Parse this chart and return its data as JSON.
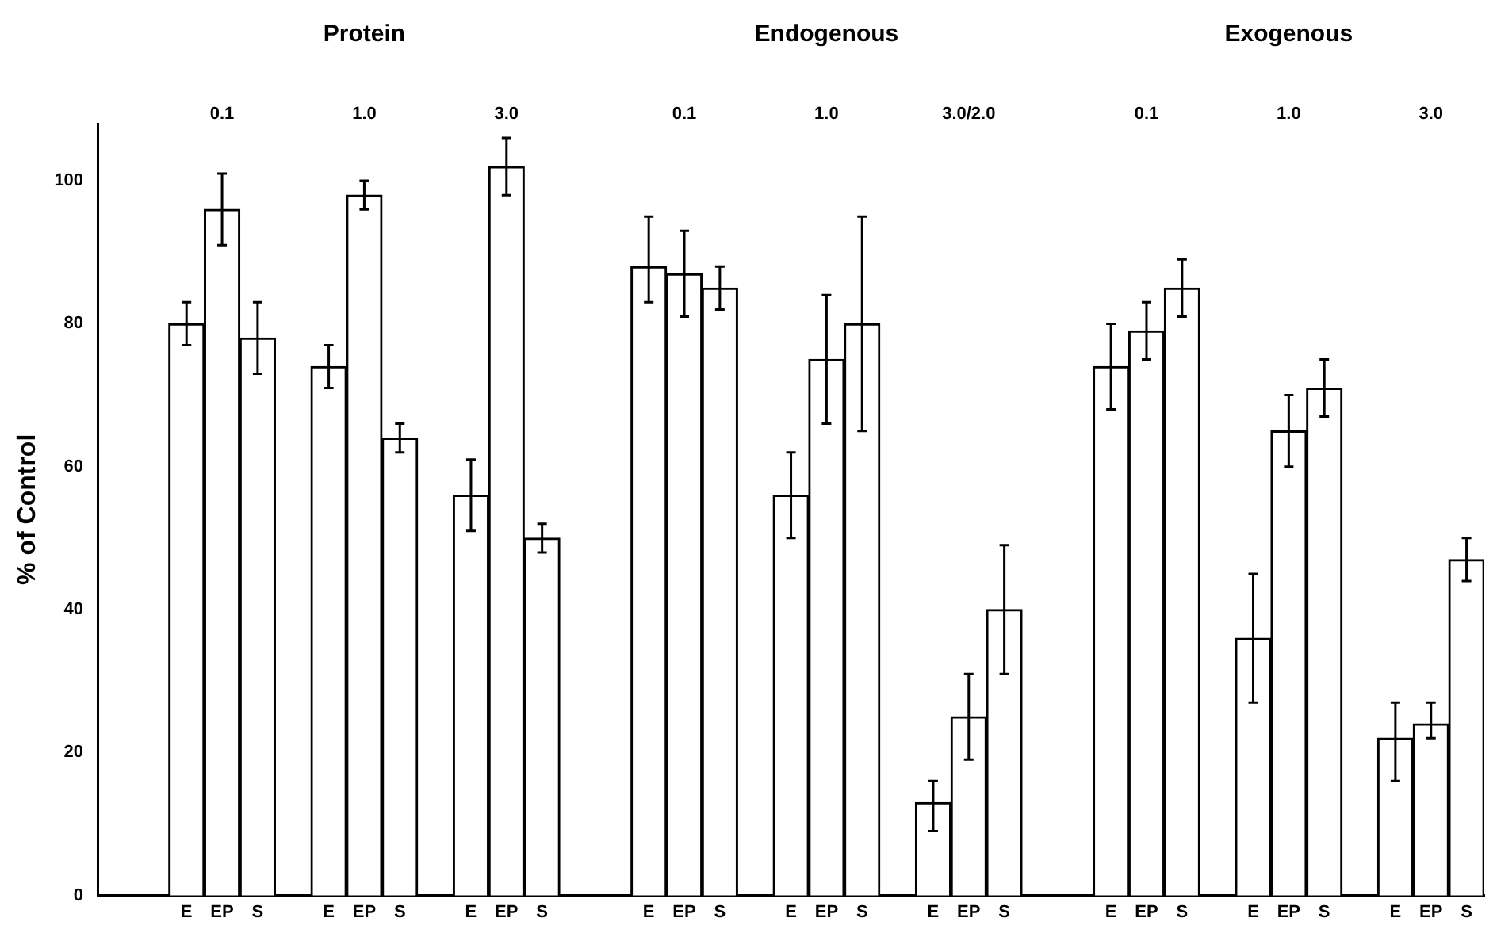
{
  "chart_data": {
    "type": "bar",
    "ylabel": "% of Control",
    "categories": [
      null,
      null,
      "E",
      "EP",
      "S",
      null,
      "E",
      "EP",
      "S",
      null,
      "E",
      "EP",
      "S",
      null,
      null,
      "E",
      "EP",
      "S",
      null,
      "E",
      "EP",
      "S",
      null,
      "E",
      "EP",
      "S",
      null,
      null,
      "E",
      "EP",
      "S",
      null,
      "E",
      "EP",
      "S",
      null,
      "E",
      "EP",
      "S"
    ],
    "values": [
      null,
      null,
      80,
      96,
      78,
      null,
      74,
      98,
      64,
      null,
      56,
      102,
      50,
      null,
      null,
      88,
      87,
      85,
      null,
      56,
      75,
      80,
      null,
      13,
      25,
      40,
      null,
      null,
      74,
      79,
      85,
      null,
      36,
      65,
      71,
      null,
      22,
      24,
      47
    ],
    "errors": [
      null,
      null,
      3,
      5,
      5,
      null,
      3,
      2,
      2,
      null,
      5,
      4,
      2,
      null,
      null,
      [
        83,
        95
      ],
      6,
      3,
      null,
      6,
      [
        66,
        84
      ],
      15,
      null,
      [
        9,
        16
      ],
      6,
      9,
      null,
      null,
      6,
      4,
      4,
      null,
      9,
      5,
      4,
      null,
      [
        16,
        27
      ],
      [
        22,
        27
      ],
      3
    ],
    "color": "#ffffff",
    "ylim": [
      0,
      108
    ],
    "yticks": [
      0,
      20,
      40,
      60,
      80,
      100
    ],
    "annotations": [
      "Protein",
      "Endogenous",
      "Exogenous",
      "0.1",
      "1.0",
      "3.0",
      "0.1",
      "1.0",
      "3.0/2.0",
      "0.1",
      "1.0",
      "3.0"
    ]
  }
}
